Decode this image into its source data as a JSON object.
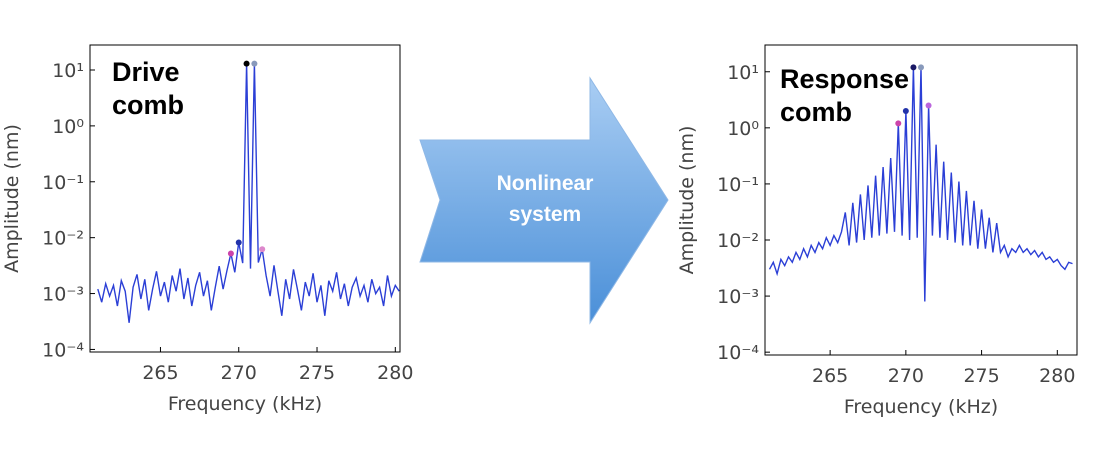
{
  "chart_data": [
    {
      "type": "line",
      "annotation": "Drive comb",
      "xlabel": "Frequency (kHz)",
      "ylabel": "Amplitude (nm)",
      "log_y": true,
      "grid": false,
      "xlim": [
        260.5,
        280.3
      ],
      "xticks": [
        265,
        270,
        275,
        280
      ],
      "ylim": [
        9e-05,
        28
      ],
      "yticks": [
        {
          "value": 0.0001,
          "label": "10⁻⁴"
        },
        {
          "value": 0.001,
          "label": "10⁻³"
        },
        {
          "value": 0.01,
          "label": "10⁻²"
        },
        {
          "value": 0.1,
          "label": "10⁻¹"
        },
        {
          "value": 1,
          "label": "10⁰"
        },
        {
          "value": 10,
          "label": "10¹"
        }
      ],
      "series": [
        {
          "color": "#2b3fd6",
          "x": [
            261,
            261.25,
            261.5,
            261.75,
            262,
            262.25,
            262.5,
            262.75,
            263,
            263.25,
            263.5,
            263.75,
            264,
            264.25,
            264.5,
            264.75,
            265,
            265.25,
            265.5,
            265.75,
            266,
            266.25,
            266.5,
            266.75,
            267,
            267.25,
            267.5,
            267.75,
            268,
            268.25,
            268.5,
            268.75,
            269,
            269.25,
            269.5,
            269.75,
            270,
            270.25,
            270.5,
            270.75,
            271,
            271.25,
            271.5,
            271.75,
            272,
            272.25,
            272.5,
            272.75,
            273,
            273.25,
            273.5,
            273.75,
            274,
            274.25,
            274.5,
            274.75,
            275,
            275.25,
            275.5,
            275.75,
            276,
            276.25,
            276.5,
            276.75,
            277,
            277.25,
            277.5,
            277.75,
            278,
            278.25,
            278.5,
            278.75,
            279,
            279.25,
            279.5,
            279.75,
            280,
            280.25
          ],
          "values": [
            0.0012,
            0.0007,
            0.0015,
            0.0009,
            0.0014,
            0.0006,
            0.0017,
            0.0011,
            0.0003,
            0.0013,
            0.0022,
            0.0008,
            0.0018,
            0.0005,
            0.0012,
            0.0025,
            0.0009,
            0.0016,
            0.0007,
            0.0021,
            0.0011,
            0.0028,
            0.0008,
            0.0019,
            0.0006,
            0.0014,
            0.0024,
            0.0009,
            0.0017,
            0.0005,
            0.0013,
            0.0031,
            0.0012,
            0.0026,
            0.0052,
            0.0024,
            0.0082,
            0.0035,
            13,
            0.0028,
            13,
            0.0036,
            0.0062,
            0.0021,
            0.0009,
            0.0032,
            0.0011,
            0.0004,
            0.0018,
            0.0008,
            0.0027,
            0.0012,
            0.0005,
            0.0016,
            0.0009,
            0.0023,
            0.0007,
            0.0014,
            0.0004,
            0.0017,
            0.0011,
            0.0024,
            0.0008,
            0.0015,
            0.0006,
            0.0013,
            0.0019,
            0.0009,
            0.0014,
            0.0007,
            0.0018,
            0.001,
            0.0013,
            0.0006,
            0.0021,
            0.0009,
            0.0014,
            0.0011
          ]
        }
      ],
      "markers": {
        "x": [
          270.5,
          271,
          270,
          269.5,
          271.5
        ],
        "values": [
          13,
          13,
          0.0082,
          0.0052,
          0.0062
        ],
        "colors": [
          "#000000",
          "#8899bb",
          "#2233aa",
          "#cc44aa",
          "#dd88cc"
        ]
      }
    },
    {
      "type": "line",
      "annotation": "Response comb",
      "xlabel": "Frequency (kHz)",
      "ylabel": "Amplitude (nm)",
      "log_y": true,
      "grid": false,
      "xlim": [
        260.7,
        281.3
      ],
      "xticks": [
        265,
        270,
        275,
        280
      ],
      "ylim": [
        8.9e-05,
        30
      ],
      "yticks": [
        {
          "value": 0.0001,
          "label": "10⁻⁴"
        },
        {
          "value": 0.001,
          "label": "10⁻³"
        },
        {
          "value": 0.01,
          "label": "10⁻²"
        },
        {
          "value": 0.1,
          "label": "10⁻¹"
        },
        {
          "value": 1,
          "label": "10⁰"
        },
        {
          "value": 10,
          "label": "10¹"
        }
      ],
      "series": [
        {
          "color": "#2b3fd6",
          "x": [
            261,
            261.25,
            261.5,
            261.75,
            262,
            262.25,
            262.5,
            262.75,
            263,
            263.25,
            263.5,
            263.75,
            264,
            264.25,
            264.5,
            264.75,
            265,
            265.25,
            265.5,
            265.75,
            266,
            266.25,
            266.5,
            266.75,
            267,
            267.25,
            267.5,
            267.75,
            268,
            268.25,
            268.5,
            268.75,
            269,
            269.25,
            269.5,
            269.75,
            270,
            270.25,
            270.5,
            270.75,
            271,
            271.25,
            271.5,
            271.75,
            272,
            272.25,
            272.5,
            272.75,
            273,
            273.25,
            273.5,
            273.75,
            274,
            274.25,
            274.5,
            274.75,
            275,
            275.25,
            275.5,
            275.75,
            276,
            276.25,
            276.5,
            276.75,
            277,
            277.25,
            277.5,
            277.75,
            278,
            278.25,
            278.5,
            278.75,
            279,
            279.25,
            279.5,
            279.75,
            280,
            280.25,
            280.5,
            280.75,
            281
          ],
          "values": [
            0.003,
            0.004,
            0.0025,
            0.0045,
            0.0035,
            0.005,
            0.004,
            0.006,
            0.0045,
            0.007,
            0.005,
            0.008,
            0.006,
            0.009,
            0.007,
            0.011,
            0.008,
            0.012,
            0.009,
            0.014,
            0.031,
            0.008,
            0.046,
            0.009,
            0.065,
            0.01,
            0.094,
            0.011,
            0.14,
            0.012,
            0.2,
            0.013,
            0.29,
            0.014,
            1.2,
            0.012,
            2,
            0.01,
            12,
            0.011,
            12,
            0.0008,
            2.5,
            0.012,
            0.5,
            0.011,
            0.25,
            0.01,
            0.16,
            0.009,
            0.11,
            0.008,
            0.075,
            0.008,
            0.05,
            0.007,
            0.035,
            0.007,
            0.025,
            0.006,
            0.02,
            0.006,
            0.008,
            0.005,
            0.007,
            0.006,
            0.008,
            0.006,
            0.007,
            0.0055,
            0.0065,
            0.005,
            0.006,
            0.0045,
            0.005,
            0.004,
            0.0045,
            0.0035,
            0.003,
            0.004,
            0.0038
          ]
        }
      ],
      "markers": {
        "x": [
          270.5,
          271,
          270,
          269.5,
          271.5
        ],
        "values": [
          12,
          12,
          2,
          1.2,
          2.5
        ],
        "colors": [
          "#1a1a66",
          "#8899bb",
          "#2233aa",
          "#cc44aa",
          "#bb66dd"
        ]
      }
    }
  ],
  "arrow_label": "Nonlinear system"
}
